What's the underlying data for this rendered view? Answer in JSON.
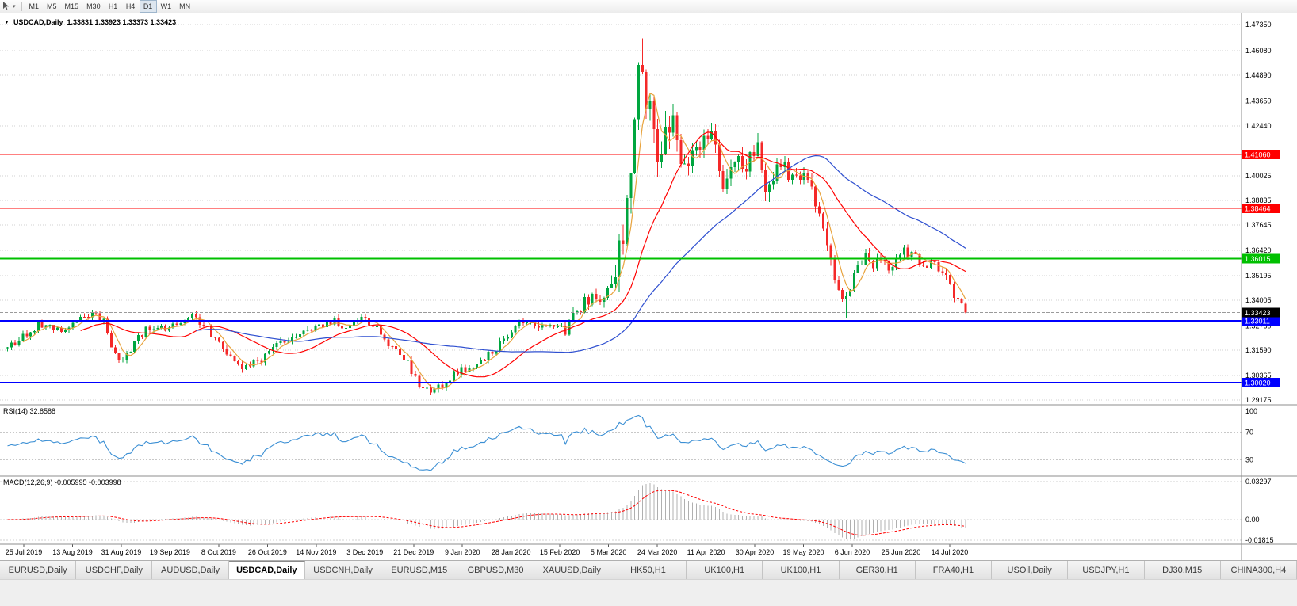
{
  "toolbar": {
    "timeframes": [
      "M1",
      "M5",
      "M15",
      "M30",
      "H1",
      "H4",
      "D1",
      "W1",
      "MN"
    ],
    "active_timeframe": "D1"
  },
  "chart": {
    "title_symbol": "USDCAD,Daily",
    "ohlc": "1.33831 1.33923 1.33373 1.33423",
    "price_axis_labels": [
      "1.47350",
      "1.46080",
      "1.44890",
      "1.43650",
      "1.42440",
      "1.40025",
      "1.38835",
      "1.37645",
      "1.36420",
      "1.35195",
      "1.34005",
      "1.32760",
      "1.31590",
      "1.30365",
      "1.29175"
    ],
    "hlines": [
      {
        "price": 1.4106,
        "label": "1.41060",
        "color": "#ff0000",
        "width": 1
      },
      {
        "price": 1.38464,
        "label": "1.38464",
        "color": "#ff0000",
        "width": 1
      },
      {
        "price": 1.36015,
        "label": "1.36015",
        "color": "#00c000",
        "width": 2
      },
      {
        "price": 1.33011,
        "label": "1.33011",
        "color": "#0000ff",
        "width": 2
      },
      {
        "price": 1.3002,
        "label": "1.30020",
        "color": "#0000ff",
        "width": 2
      }
    ],
    "bid_tag": {
      "price": 1.33423,
      "label": "1.33423",
      "color": "#000000"
    },
    "date_labels": [
      "25 Jul 2019",
      "13 Aug 2019",
      "31 Aug 2019",
      "19 Sep 2019",
      "8 Oct 2019",
      "26 Oct 2019",
      "14 Nov 2019",
      "3 Dec 2019",
      "21 Dec 2019",
      "9 Jan 2020",
      "28 Jan 2020",
      "15 Feb 2020",
      "5 Mar 2020",
      "24 Mar 2020",
      "11 Apr 2020",
      "30 Apr 2020",
      "19 May 2020",
      "6 Jun 2020",
      "25 Jun 2020",
      "14 Jul 2020"
    ]
  },
  "rsi": {
    "label": "RSI(14) 32.8588",
    "value": 32.8588,
    "period": 14,
    "axis_labels": [
      "100",
      "70",
      "30"
    ],
    "level_values": [
      70,
      30
    ]
  },
  "macd": {
    "label": "MACD(12,26,9) -0.005995 -0.003998",
    "macd_value": -0.005995,
    "signal_value": -0.003998,
    "axis_labels": [
      "0.03297",
      "0.00",
      "-0.01815"
    ]
  },
  "tabs": {
    "items": [
      "EURUSD,Daily",
      "USDCHF,Daily",
      "AUDUSD,Daily",
      "USDCAD,Daily",
      "USDCNH,Daily",
      "EURUSD,M15",
      "GBPUSD,M30",
      "XAUUSD,Daily",
      "HK50,H1",
      "UK100,H1",
      "UK100,H1",
      "GER30,H1",
      "FRA40,H1",
      "USOil,Daily",
      "USDJPY,H1",
      "DJ30,M15",
      "CHINA300,H4"
    ],
    "active": "USDCAD,Daily"
  },
  "chart_data": {
    "type": "candlestick",
    "symbol": "USDCAD",
    "timeframe": "Daily",
    "candles_count": 250,
    "last_candle": {
      "open": 1.33831,
      "high": 1.33923,
      "low": 1.33373,
      "close": 1.33423
    },
    "colors": {
      "up": "#00a63f",
      "down": "#f42929",
      "ma_fast": "#e8a33d",
      "ma_mid": "#ff0000",
      "ma_slow": "#2e4fd0",
      "rsi_line": "#3b8fd4",
      "macd_hist": "#b0b0b0",
      "macd_signal": "#ff0000"
    },
    "moving_averages": [
      {
        "period": 5,
        "color": "#e8a33d"
      },
      {
        "period": 20,
        "color": "#ff0000"
      },
      {
        "period": 50,
        "color": "#2e4fd0"
      }
    ],
    "extremes": [
      {
        "t": 0.662,
        "high": 1.4668
      },
      {
        "t": 0.44,
        "low": 1.2949
      },
      {
        "t": 0.874,
        "low": 1.3317
      }
    ],
    "price_path": [
      [
        0.0,
        1.317
      ],
      [
        0.015,
        1.323
      ],
      [
        0.035,
        1.329
      ],
      [
        0.055,
        1.326
      ],
      [
        0.075,
        1.33
      ],
      [
        0.09,
        1.333
      ],
      [
        0.1,
        1.33
      ],
      [
        0.112,
        1.314
      ],
      [
        0.122,
        1.311
      ],
      [
        0.135,
        1.322
      ],
      [
        0.15,
        1.328
      ],
      [
        0.165,
        1.325
      ],
      [
        0.18,
        1.329
      ],
      [
        0.195,
        1.333
      ],
      [
        0.21,
        1.326
      ],
      [
        0.225,
        1.316
      ],
      [
        0.245,
        1.308
      ],
      [
        0.265,
        1.312
      ],
      [
        0.285,
        1.319
      ],
      [
        0.305,
        1.323
      ],
      [
        0.325,
        1.327
      ],
      [
        0.34,
        1.33
      ],
      [
        0.355,
        1.327
      ],
      [
        0.37,
        1.3305
      ],
      [
        0.385,
        1.326
      ],
      [
        0.4,
        1.318
      ],
      [
        0.415,
        1.312
      ],
      [
        0.428,
        1.2995
      ],
      [
        0.44,
        1.296
      ],
      [
        0.452,
        1.299
      ],
      [
        0.465,
        1.304
      ],
      [
        0.48,
        1.307
      ],
      [
        0.495,
        1.311
      ],
      [
        0.51,
        1.316
      ],
      [
        0.525,
        1.326
      ],
      [
        0.54,
        1.3305
      ],
      [
        0.555,
        1.326
      ],
      [
        0.57,
        1.329
      ],
      [
        0.582,
        1.326
      ],
      [
        0.595,
        1.334
      ],
      [
        0.608,
        1.342
      ],
      [
        0.618,
        1.339
      ],
      [
        0.628,
        1.344
      ],
      [
        0.638,
        1.36
      ],
      [
        0.646,
        1.385
      ],
      [
        0.652,
        1.405
      ],
      [
        0.658,
        1.448
      ],
      [
        0.662,
        1.46
      ],
      [
        0.666,
        1.438
      ],
      [
        0.67,
        1.448
      ],
      [
        0.675,
        1.419
      ],
      [
        0.68,
        1.408
      ],
      [
        0.685,
        1.422
      ],
      [
        0.69,
        1.43
      ],
      [
        0.696,
        1.421
      ],
      [
        0.702,
        1.411
      ],
      [
        0.71,
        1.406
      ],
      [
        0.718,
        1.415
      ],
      [
        0.726,
        1.418
      ],
      [
        0.733,
        1.422
      ],
      [
        0.74,
        1.409
      ],
      [
        0.748,
        1.396
      ],
      [
        0.755,
        1.405
      ],
      [
        0.762,
        1.409
      ],
      [
        0.768,
        1.399
      ],
      [
        0.775,
        1.408
      ],
      [
        0.781,
        1.414
      ],
      [
        0.787,
        1.406
      ],
      [
        0.793,
        1.392
      ],
      [
        0.799,
        1.398
      ],
      [
        0.805,
        1.409
      ],
      [
        0.812,
        1.403
      ],
      [
        0.82,
        1.398
      ],
      [
        0.828,
        1.401
      ],
      [
        0.836,
        1.395
      ],
      [
        0.844,
        1.387
      ],
      [
        0.852,
        1.375
      ],
      [
        0.86,
        1.356
      ],
      [
        0.868,
        1.343
      ],
      [
        0.874,
        1.339
      ],
      [
        0.88,
        1.348
      ],
      [
        0.888,
        1.356
      ],
      [
        0.896,
        1.362
      ],
      [
        0.904,
        1.357
      ],
      [
        0.912,
        1.36
      ],
      [
        0.92,
        1.354
      ],
      [
        0.928,
        1.36
      ],
      [
        0.936,
        1.364
      ],
      [
        0.944,
        1.362
      ],
      [
        0.952,
        1.359
      ],
      [
        0.96,
        1.357
      ],
      [
        0.968,
        1.358
      ],
      [
        0.976,
        1.355
      ],
      [
        0.984,
        1.347
      ],
      [
        0.992,
        1.34
      ],
      [
        1.0,
        1.33423
      ]
    ]
  }
}
